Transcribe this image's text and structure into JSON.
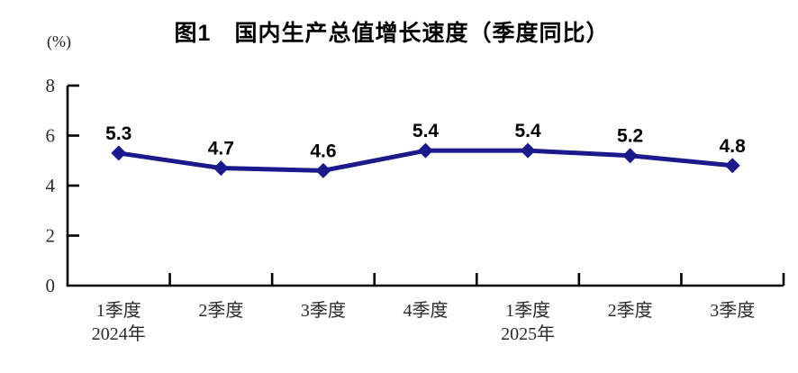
{
  "chart_data": {
    "type": "line",
    "title": "图1　国内生产总值增长速度（季度同比）",
    "unit_label": "(%)",
    "categories": [
      "1季度",
      "2季度",
      "3季度",
      "4季度",
      "1季度",
      "2季度",
      "3季度"
    ],
    "year_labels": [
      {
        "index": 0,
        "label": "2024年"
      },
      {
        "index": 4,
        "label": "2025年"
      }
    ],
    "values": [
      5.3,
      4.7,
      4.6,
      5.4,
      5.4,
      5.2,
      4.8
    ],
    "value_labels": [
      "5.3",
      "4.7",
      "4.6",
      "5.4",
      "5.4",
      "5.2",
      "4.8"
    ],
    "ylim": [
      0,
      8
    ],
    "yticks": [
      0,
      2,
      4,
      6,
      8
    ],
    "grid": false,
    "legend": "none",
    "colors": {
      "line": "#1a1a8c",
      "marker": "#1a1a8c",
      "axis": "#000000",
      "tick_text": "#2b2b2b",
      "value_text": "#000000",
      "title_text": "#000000"
    }
  }
}
